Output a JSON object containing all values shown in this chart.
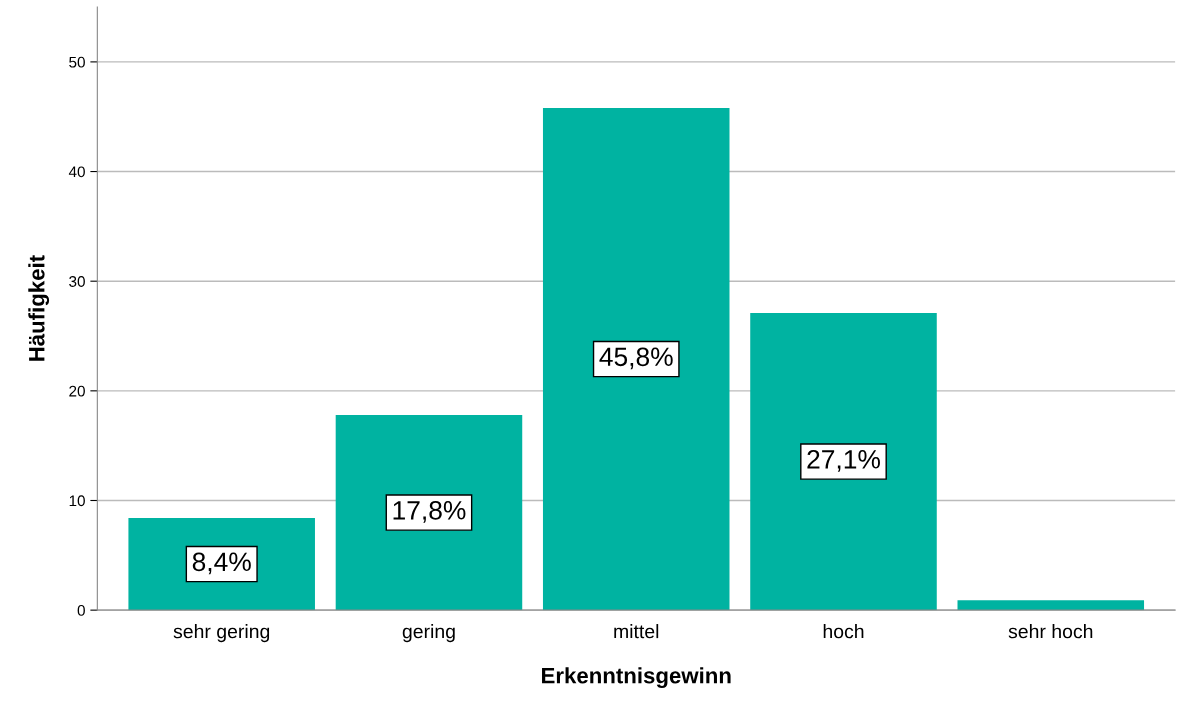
{
  "chart_data": {
    "type": "bar",
    "xlabel": "Erkenntnisgewinn",
    "ylabel": "Häufigkeit",
    "categories": [
      "sehr gering",
      "gering",
      "mittel",
      "hoch",
      "sehr hoch"
    ],
    "values": [
      8.4,
      17.8,
      45.8,
      27.1,
      0.9
    ],
    "value_labels": [
      "8,4%",
      "17,8%",
      "45,8%",
      "27,1%",
      null
    ],
    "color": "#00b3a1",
    "ylim": [
      0,
      55
    ],
    "yticks": [
      0,
      10,
      20,
      30,
      40,
      50
    ],
    "grid": "y",
    "legend": false
  }
}
